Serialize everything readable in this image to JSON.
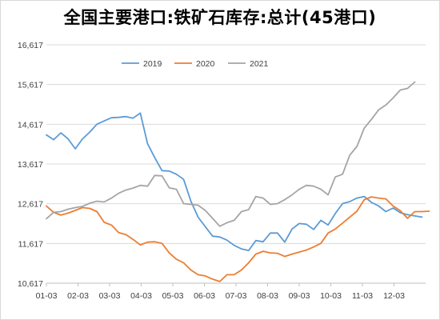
{
  "chart_data": {
    "type": "line",
    "title": "全国主要港口:铁矿石库存:总计(45港口)",
    "xlabel": "",
    "ylabel": "",
    "ylim": [
      10617,
      16617
    ],
    "yticks": [
      "10,617",
      "11,617",
      "12,617",
      "13,617",
      "14,617",
      "15,617",
      "16,617"
    ],
    "ytick_values": [
      10617,
      11617,
      12617,
      13617,
      14617,
      15617,
      16617
    ],
    "xticks": [
      "01-03",
      "02-03",
      "03-03",
      "04-03",
      "05-03",
      "06-03",
      "07-03",
      "08-03",
      "09-03",
      "10-03",
      "11-03",
      "12-03"
    ],
    "x_range_weeks": [
      0,
      52.5
    ],
    "grid": "horizontal",
    "legend_position": "top",
    "series": [
      {
        "name": "2019",
        "color": "#5b9bd5",
        "x_weeks": [
          0,
          1,
          2,
          3,
          4,
          5,
          6,
          7,
          8,
          9,
          10,
          11,
          12,
          13,
          14,
          15,
          16,
          17,
          18,
          19,
          20,
          21,
          22,
          23,
          24,
          25,
          26,
          27,
          28,
          29,
          30,
          31,
          32,
          33,
          34,
          35,
          36,
          37,
          38,
          39,
          40,
          41,
          42,
          43,
          44,
          45,
          46,
          47,
          48,
          49,
          50,
          51,
          52
        ],
        "values": [
          14350,
          14230,
          14400,
          14250,
          14000,
          14250,
          14420,
          14620,
          14700,
          14780,
          14790,
          14810,
          14770,
          14900,
          14130,
          13780,
          13450,
          13440,
          13360,
          13230,
          12680,
          12280,
          12040,
          11800,
          11780,
          11700,
          11570,
          11480,
          11440,
          11690,
          11660,
          11880,
          11880,
          11650,
          11980,
          12120,
          12100,
          11970,
          12200,
          12080,
          12370,
          12620,
          12670,
          12760,
          12800,
          12650,
          12560,
          12420,
          12510,
          12390,
          12340,
          12310,
          12280
        ]
      },
      {
        "name": "2020",
        "color": "#ed7d31",
        "x_weeks": [
          0,
          1,
          2,
          3,
          4,
          5,
          6,
          7,
          8,
          9,
          10,
          11,
          12,
          13,
          14,
          15,
          16,
          17,
          18,
          19,
          20,
          21,
          22,
          23,
          24,
          25,
          26,
          27,
          28,
          29,
          30,
          31,
          32,
          33,
          34,
          35,
          36,
          37,
          38,
          39,
          40,
          41,
          42,
          43,
          44,
          45,
          46,
          47,
          48,
          49,
          50,
          51,
          52,
          53
        ],
        "values": [
          12560,
          12400,
          12330,
          12380,
          12450,
          12520,
          12500,
          12420,
          12150,
          12080,
          11890,
          11840,
          11720,
          11580,
          11650,
          11660,
          11620,
          11380,
          11220,
          11130,
          10950,
          10830,
          10800,
          10720,
          10660,
          10830,
          10830,
          10950,
          11130,
          11350,
          11420,
          11380,
          11370,
          11290,
          11350,
          11400,
          11450,
          11530,
          11620,
          11880,
          11980,
          12130,
          12280,
          12430,
          12720,
          12790,
          12760,
          12740,
          12560,
          12440,
          12250,
          12420,
          12420,
          12430
        ]
      },
      {
        "name": "2021",
        "color": "#a5a5a5",
        "x_weeks": [
          0,
          1,
          2,
          3,
          4,
          5,
          6,
          7,
          8,
          9,
          10,
          11,
          12,
          13,
          14,
          15,
          16,
          17,
          18,
          19,
          20,
          21,
          22,
          23,
          24,
          25,
          26,
          27,
          28,
          29,
          30,
          31,
          32,
          33,
          34,
          35,
          36,
          37,
          38,
          39,
          40,
          41,
          42,
          43,
          44,
          45,
          46,
          47,
          48,
          49,
          50,
          51
        ],
        "values": [
          12240,
          12400,
          12420,
          12480,
          12520,
          12550,
          12630,
          12680,
          12660,
          12760,
          12880,
          12960,
          13010,
          13080,
          13060,
          13330,
          13320,
          13020,
          12980,
          12620,
          12600,
          12580,
          12450,
          12250,
          12050,
          12140,
          12200,
          12420,
          12470,
          12800,
          12760,
          12600,
          12620,
          12720,
          12840,
          12980,
          13080,
          13060,
          12980,
          12840,
          13290,
          13360,
          13840,
          14060,
          14520,
          14740,
          14980,
          15100,
          15280,
          15480,
          15520,
          15680
        ]
      }
    ]
  }
}
